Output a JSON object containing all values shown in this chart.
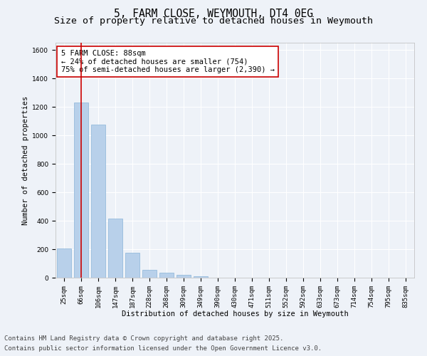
{
  "title": "5, FARM CLOSE, WEYMOUTH, DT4 0EG",
  "subtitle": "Size of property relative to detached houses in Weymouth",
  "xlabel": "Distribution of detached houses by size in Weymouth",
  "ylabel": "Number of detached properties",
  "categories": [
    "25sqm",
    "66sqm",
    "106sqm",
    "147sqm",
    "187sqm",
    "228sqm",
    "268sqm",
    "309sqm",
    "349sqm",
    "390sqm",
    "430sqm",
    "471sqm",
    "511sqm",
    "552sqm",
    "592sqm",
    "633sqm",
    "673sqm",
    "714sqm",
    "754sqm",
    "795sqm",
    "835sqm"
  ],
  "values": [
    205,
    1230,
    1075,
    415,
    175,
    55,
    35,
    20,
    12,
    0,
    0,
    0,
    0,
    0,
    0,
    0,
    0,
    0,
    0,
    0,
    0
  ],
  "bar_color": "#b8d0ea",
  "bar_edge_color": "#8ab4d8",
  "vline_x": 1,
  "vline_color": "#cc0000",
  "annotation_box_text": "5 FARM CLOSE: 88sqm\n← 24% of detached houses are smaller (754)\n75% of semi-detached houses are larger (2,390) →",
  "ylim": [
    0,
    1650
  ],
  "yticks": [
    0,
    200,
    400,
    600,
    800,
    1000,
    1200,
    1400,
    1600
  ],
  "background_color": "#eef2f8",
  "plot_bg_color": "#eef2f8",
  "grid_color": "#ffffff",
  "footer_line1": "Contains HM Land Registry data © Crown copyright and database right 2025.",
  "footer_line2": "Contains public sector information licensed under the Open Government Licence v3.0.",
  "title_fontsize": 10.5,
  "subtitle_fontsize": 9.5,
  "axis_label_fontsize": 7.5,
  "tick_fontsize": 6.5,
  "annotation_fontsize": 7.5,
  "footer_fontsize": 6.5
}
